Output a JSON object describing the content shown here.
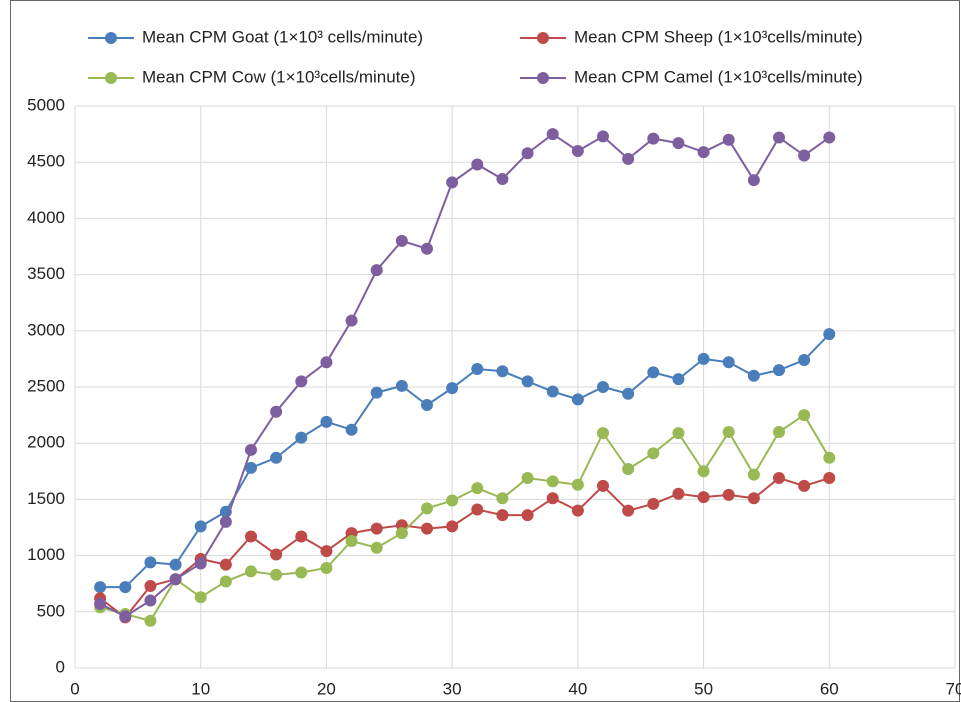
{
  "chart_data": {
    "type": "line",
    "x": [
      2,
      4,
      6,
      8,
      10,
      12,
      14,
      16,
      18,
      20,
      22,
      24,
      26,
      28,
      30,
      32,
      34,
      36,
      38,
      40,
      42,
      44,
      46,
      48,
      50,
      52,
      54,
      56,
      58,
      60
    ],
    "series": [
      {
        "name": "Mean CPM Goat (1×10³ cells/minute)",
        "color": "#4a7ebb",
        "values": [
          720,
          720,
          940,
          920,
          1260,
          1390,
          1780,
          1870,
          2050,
          2190,
          2120,
          2450,
          2510,
          2340,
          2490,
          2660,
          2640,
          2550,
          2460,
          2390,
          2500,
          2440,
          2630,
          2570,
          2750,
          2720,
          2600,
          2650,
          2740,
          2970
        ]
      },
      {
        "name": "Mean CPM Sheep  (1×10³cells/minute)",
        "color": "#be4b48",
        "values": [
          620,
          450,
          730,
          790,
          970,
          920,
          1170,
          1010,
          1170,
          1040,
          1200,
          1240,
          1270,
          1240,
          1260,
          1410,
          1360,
          1360,
          1510,
          1400,
          1620,
          1400,
          1460,
          1550,
          1520,
          1540,
          1510,
          1690,
          1620,
          1690
        ]
      },
      {
        "name": "Mean CPM Cow (1×10³cells/minute)",
        "color": "#98b954",
        "values": [
          540,
          480,
          420,
          790,
          630,
          770,
          860,
          830,
          850,
          890,
          1130,
          1070,
          1200,
          1420,
          1490,
          1600,
          1510,
          1690,
          1660,
          1630,
          2090,
          1770,
          1910,
          2090,
          1750,
          2100,
          1720,
          2100,
          2250,
          1870
        ]
      },
      {
        "name": "Mean CPM Camel (1×10³cells/minute)",
        "color": "#7d5fa0",
        "values": [
          570,
          460,
          600,
          790,
          930,
          1300,
          1940,
          2280,
          2550,
          2720,
          3090,
          3540,
          3800,
          3730,
          4320,
          4480,
          4350,
          4580,
          4750,
          4600,
          4730,
          4530,
          4710,
          4670,
          4590,
          4700,
          4340,
          4720,
          4560,
          4720
        ]
      }
    ],
    "xlim": [
      0,
      70
    ],
    "xticks": [
      0,
      10,
      20,
      30,
      40,
      50,
      60,
      70
    ],
    "ylim": [
      0,
      5000
    ],
    "yticks": [
      0,
      500,
      1000,
      1500,
      2000,
      2500,
      3000,
      3500,
      4000,
      4500,
      5000
    ],
    "grid": true,
    "legend": "top"
  }
}
